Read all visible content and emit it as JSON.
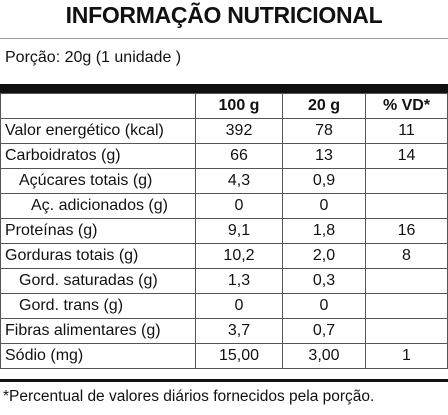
{
  "header": {
    "title": "INFORMAÇÃO NUTRICIONAL",
    "portion": "Porção: 20g (1 unidade )"
  },
  "table": {
    "columns": [
      null,
      "100 g",
      "20 g",
      "% VD*"
    ],
    "rows": [
      [
        "Valor energético (kcal)",
        "392",
        "78",
        "11"
      ],
      [
        "Carboidratos (g)",
        "66",
        "13",
        "14"
      ],
      [
        "Açúcares totais (g)",
        "4,3",
        "0,9",
        null
      ],
      [
        "Aç. adicionados (g)",
        "0",
        "0",
        null
      ],
      [
        "Proteínas (g)",
        "9,1",
        "1,8",
        "16"
      ],
      [
        "Gorduras totais (g)",
        "10,2",
        "2,0",
        "8"
      ],
      [
        "Gord. saturadas (g)",
        "1,3",
        "0,3",
        null
      ],
      [
        "Gord. trans (g)",
        "0",
        "0",
        null
      ],
      [
        "Fibras alimentares (g)",
        "3,7",
        "0,7",
        null
      ],
      [
        "Sódio (mg)",
        "15,00",
        "3,00",
        "1"
      ]
    ]
  },
  "footnote": "*Percentual de valores diários fornecidos pela porção."
}
